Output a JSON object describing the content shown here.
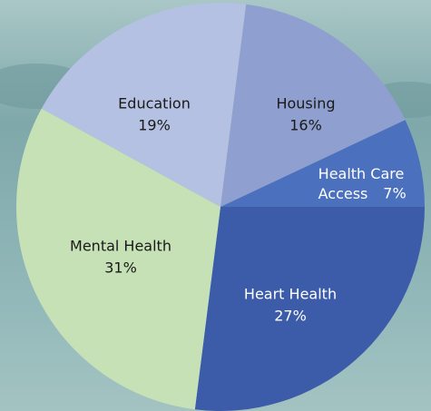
{
  "chart_data": {
    "type": "pie",
    "categories": [
      "Heart Health",
      "Mental Health",
      "Education",
      "Housing",
      "Health Care Access"
    ],
    "values": [
      27,
      31,
      19,
      16,
      7
    ],
    "value_labels": [
      "27%",
      "31%",
      "19%",
      "16%",
      "7%"
    ],
    "colors": [
      "#3c5ba9",
      "#c6e1b6",
      "#b5c1e2",
      "#8f9fcf",
      "#4b70bd"
    ],
    "label_colors": [
      "#ffffff",
      "#1a1a1a",
      "#1a1a1a",
      "#1a1a1a",
      "#ffffff"
    ]
  }
}
